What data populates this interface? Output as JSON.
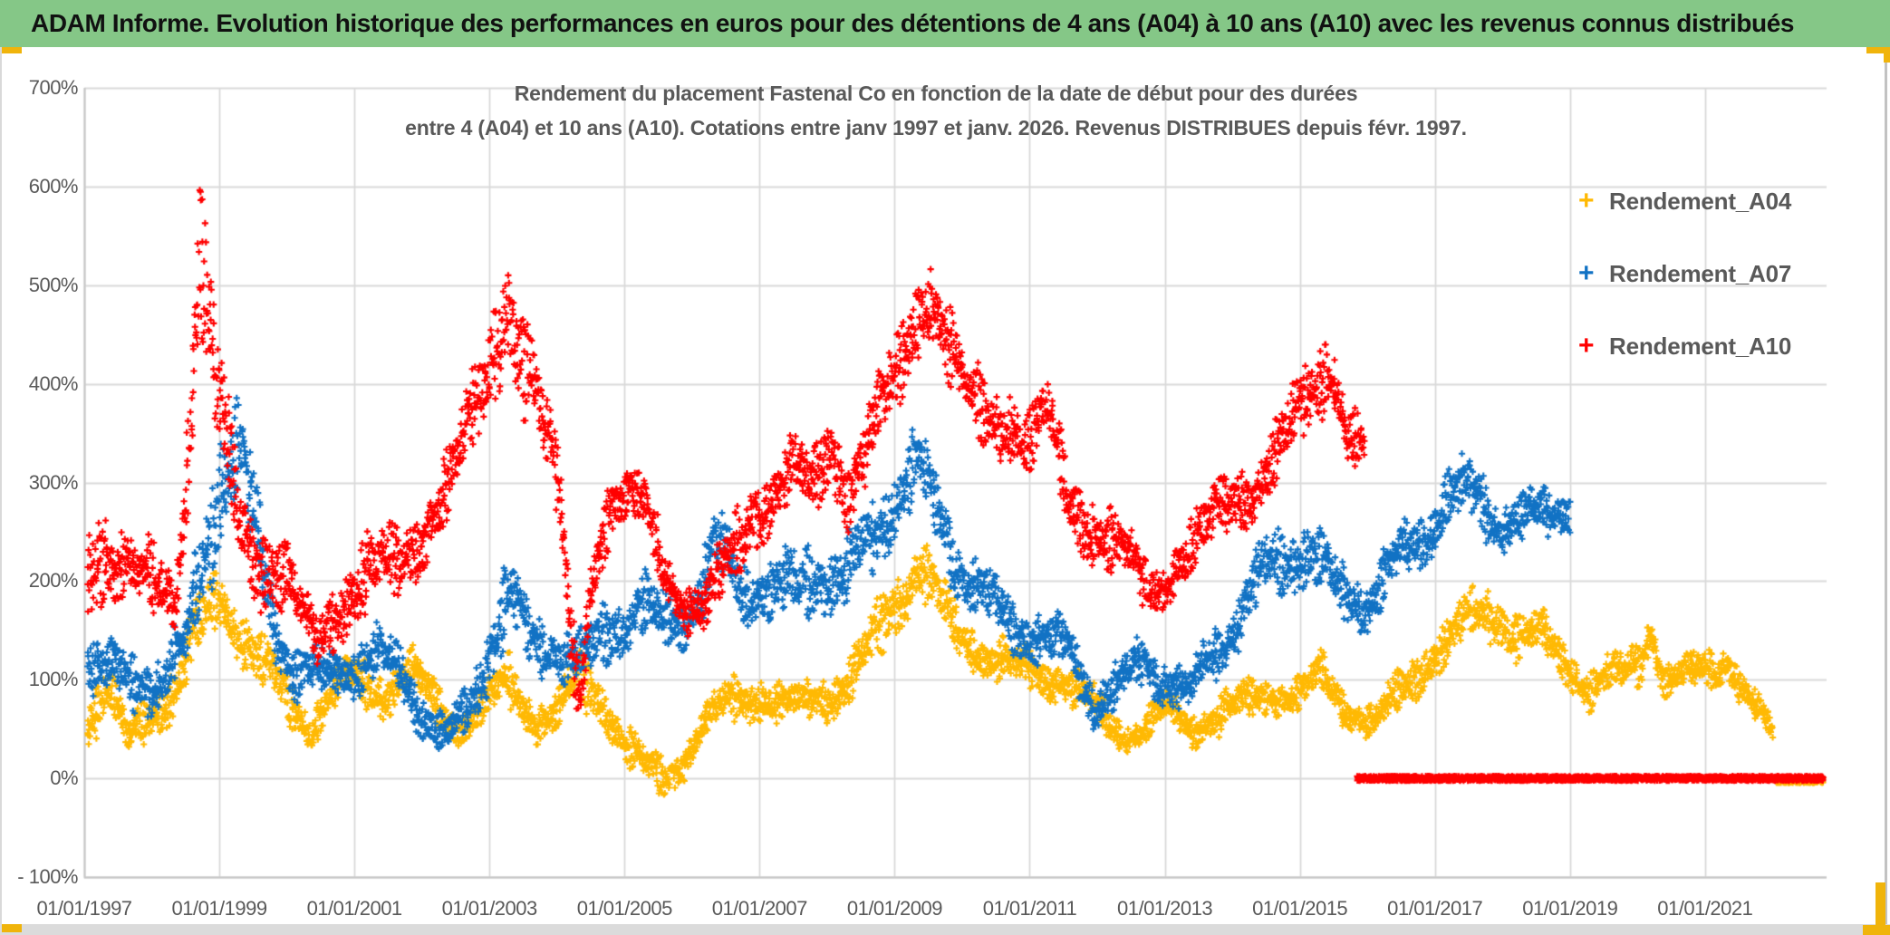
{
  "header": {
    "title": "ADAM Informe. Evolution historique des performances en euros pour des détentions de 4 ans (A04) à 10 ans (A10) avec les revenus connus distribués"
  },
  "colors": {
    "header_green": "#85C787",
    "accent_gold": "#F0B40B",
    "grid": "#D9D9D9",
    "plot_border": "#C6C6C6",
    "axis_label": "#595959",
    "series_a04": "#FFB903",
    "series_a07": "#1172C4",
    "series_a10": "#FF0000"
  },
  "chart_data": {
    "type": "scatter",
    "title_line1": "Rendement du placement Fastenal Co en fonction de la date de début pour des durées",
    "title_line2": "entre 4 (A04) et 10 ans (A10). Cotations entre janv 1997 et janv. 2026. Revenus DISTRIBUES depuis févr. 1997.",
    "x_range": [
      1997,
      2022.8
    ],
    "y_range": [
      -100,
      700
    ],
    "grid": true,
    "legend_position": "right-top",
    "y_ticks": [
      {
        "label": "700%",
        "value": 700
      },
      {
        "label": "600%",
        "value": 600
      },
      {
        "label": "500%",
        "value": 500
      },
      {
        "label": "400%",
        "value": 400
      },
      {
        "label": "300%",
        "value": 300
      },
      {
        "label": "200%",
        "value": 200
      },
      {
        "label": "100%",
        "value": 100
      },
      {
        "label": "0%",
        "value": 0
      },
      {
        "label": "- 100%",
        "value": -100
      }
    ],
    "x_ticks": [
      {
        "label": "01/01/1997",
        "year": 1997
      },
      {
        "label": "01/01/1999",
        "year": 1999
      },
      {
        "label": "01/01/2001",
        "year": 2001
      },
      {
        "label": "01/01/2003",
        "year": 2003
      },
      {
        "label": "01/01/2005",
        "year": 2005
      },
      {
        "label": "01/01/2007",
        "year": 2007
      },
      {
        "label": "01/01/2009",
        "year": 2009
      },
      {
        "label": "01/01/2011",
        "year": 2011
      },
      {
        "label": "01/01/2013",
        "year": 2013
      },
      {
        "label": "01/01/2015",
        "year": 2015
      },
      {
        "label": "01/01/2017",
        "year": 2017
      },
      {
        "label": "01/01/2019",
        "year": 2019
      },
      {
        "label": "01/01/2021",
        "year": 2021
      }
    ],
    "legend": [
      {
        "label": "Rendement_A04",
        "marker": "+",
        "color": "#FFB903"
      },
      {
        "label": "Rendement_A07",
        "marker": "+",
        "color": "#1172C4"
      },
      {
        "label": "Rendement_A10",
        "marker": "+",
        "color": "#FF0000"
      }
    ],
    "series": [
      {
        "name": "Rendement_A04",
        "color": "#FFB903",
        "marker": "+",
        "zero_band": [
          2022.05,
          2022.75
        ],
        "anchors": [
          [
            1997.05,
            30,
            105
          ],
          [
            1997.35,
            55,
            120
          ],
          [
            1997.65,
            15,
            60
          ],
          [
            1998,
            40,
            100
          ],
          [
            1998.35,
            60,
            120
          ],
          [
            1998.7,
            110,
            190
          ],
          [
            1999,
            150,
            232
          ],
          [
            1999.3,
            120,
            190
          ],
          [
            1999.6,
            80,
            150
          ],
          [
            2000,
            50,
            110
          ],
          [
            2000.35,
            30,
            80
          ],
          [
            2000.7,
            60,
            110
          ],
          [
            2001,
            70,
            130
          ],
          [
            2001.4,
            60,
            120
          ],
          [
            2001.85,
            80,
            135
          ],
          [
            2002.2,
            50,
            100
          ],
          [
            2002.55,
            30,
            75
          ],
          [
            2002.9,
            45,
            95
          ],
          [
            2003.3,
            60,
            130
          ],
          [
            2003.7,
            35,
            85
          ],
          [
            2004,
            40,
            90
          ],
          [
            2004.35,
            60,
            140
          ],
          [
            2004.7,
            50,
            110
          ],
          [
            2005,
            10,
            60
          ],
          [
            2005.3,
            -15,
            35
          ],
          [
            2005.6,
            -25,
            25
          ],
          [
            2005.9,
            0,
            50
          ],
          [
            2006.2,
            30,
            80
          ],
          [
            2006.6,
            50,
            110
          ],
          [
            2007,
            60,
            115
          ],
          [
            2007.4,
            45,
            95
          ],
          [
            2007.8,
            55,
            110
          ],
          [
            2008.2,
            60,
            120
          ],
          [
            2008.6,
            90,
            160
          ],
          [
            2009,
            140,
            220
          ],
          [
            2009.35,
            180,
            258
          ],
          [
            2009.6,
            150,
            220
          ],
          [
            2009.9,
            120,
            180
          ],
          [
            2010.3,
            100,
            155
          ],
          [
            2010.7,
            85,
            140
          ],
          [
            2011.1,
            80,
            130
          ],
          [
            2011.5,
            75,
            125
          ],
          [
            2011.9,
            45,
            100
          ],
          [
            2012.3,
            25,
            70
          ],
          [
            2012.7,
            30,
            70
          ],
          [
            2013,
            45,
            90
          ],
          [
            2013.4,
            30,
            75
          ],
          [
            2013.8,
            40,
            90
          ],
          [
            2014.2,
            50,
            100
          ],
          [
            2014.6,
            65,
            115
          ],
          [
            2015,
            55,
            105
          ],
          [
            2015.3,
            75,
            130
          ],
          [
            2015.7,
            50,
            100
          ],
          [
            2016.1,
            35,
            75
          ],
          [
            2016.5,
            60,
            115
          ],
          [
            2016.9,
            95,
            155
          ],
          [
            2017.2,
            105,
            165
          ],
          [
            2017.55,
            130,
            195
          ],
          [
            2017.9,
            140,
            205
          ],
          [
            2018.25,
            110,
            170
          ],
          [
            2018.6,
            115,
            170
          ],
          [
            2018.95,
            95,
            150
          ],
          [
            2019.3,
            65,
            115
          ],
          [
            2019.7,
            80,
            130
          ],
          [
            2020.05,
            95,
            150
          ],
          [
            2020.2,
            130,
            185
          ],
          [
            2020.4,
            70,
            120
          ],
          [
            2020.8,
            80,
            130
          ],
          [
            2021.1,
            90,
            140
          ],
          [
            2021.35,
            95,
            150
          ],
          [
            2021.6,
            60,
            105
          ],
          [
            2021.85,
            40,
            80
          ],
          [
            2022,
            30,
            60
          ]
        ]
      },
      {
        "name": "Rendement_A07",
        "color": "#1172C4",
        "marker": "+",
        "anchors": [
          [
            1997.05,
            90,
            160
          ],
          [
            1997.4,
            70,
            140
          ],
          [
            1997.8,
            60,
            130
          ],
          [
            1998.2,
            70,
            140
          ],
          [
            1998.5,
            90,
            170
          ],
          [
            1998.75,
            150,
            280
          ],
          [
            1999.05,
            250,
            400
          ],
          [
            1999.3,
            260,
            390
          ],
          [
            1999.55,
            180,
            300
          ],
          [
            1999.8,
            120,
            200
          ],
          [
            2000.1,
            80,
            150
          ],
          [
            2000.5,
            70,
            130
          ],
          [
            2000.9,
            80,
            150
          ],
          [
            2001.3,
            90,
            160
          ],
          [
            2001.7,
            70,
            140
          ],
          [
            2002,
            40,
            100
          ],
          [
            2002.35,
            15,
            60
          ],
          [
            2002.7,
            40,
            100
          ],
          [
            2003,
            90,
            180
          ],
          [
            2003.3,
            140,
            235
          ],
          [
            2003.6,
            100,
            170
          ],
          [
            2004,
            100,
            170
          ],
          [
            2004.4,
            80,
            150
          ],
          [
            2004.8,
            110,
            190
          ],
          [
            2005.2,
            140,
            220
          ],
          [
            2005.6,
            110,
            190
          ],
          [
            2006,
            140,
            210
          ],
          [
            2006.35,
            180,
            285
          ],
          [
            2006.7,
            150,
            230
          ],
          [
            2007.1,
            160,
            240
          ],
          [
            2007.5,
            140,
            230
          ],
          [
            2007.9,
            170,
            250
          ],
          [
            2008.3,
            160,
            250
          ],
          [
            2008.7,
            200,
            290
          ],
          [
            2009.05,
            250,
            340
          ],
          [
            2009.35,
            270,
            360
          ],
          [
            2009.6,
            230,
            320
          ],
          [
            2010,
            170,
            250
          ],
          [
            2010.4,
            140,
            210
          ],
          [
            2010.8,
            120,
            190
          ],
          [
            2011.2,
            110,
            180
          ],
          [
            2011.6,
            90,
            160
          ],
          [
            2011.95,
            50,
            110
          ],
          [
            2012.3,
            60,
            120
          ],
          [
            2012.7,
            90,
            150
          ],
          [
            2013.05,
            70,
            130
          ],
          [
            2013.35,
            55,
            110
          ],
          [
            2013.7,
            90,
            160
          ],
          [
            2014.1,
            130,
            200
          ],
          [
            2014.5,
            170,
            250
          ],
          [
            2014.9,
            190,
            270
          ],
          [
            2015.2,
            190,
            265
          ],
          [
            2015.6,
            150,
            220
          ],
          [
            2016,
            150,
            215
          ],
          [
            2016.4,
            180,
            250
          ],
          [
            2016.8,
            210,
            280
          ],
          [
            2017.15,
            240,
            320
          ],
          [
            2017.5,
            250,
            330
          ],
          [
            2017.8,
            235,
            310
          ],
          [
            2018.1,
            225,
            300
          ],
          [
            2018.45,
            230,
            295
          ],
          [
            2018.75,
            245,
            305
          ],
          [
            2019,
            250,
            300
          ]
        ]
      },
      {
        "name": "Rendement_A10",
        "color": "#FF0000",
        "marker": "+",
        "zero_band": [
          2015.85,
          2022.75
        ],
        "anchors": [
          [
            1997.05,
            140,
            300
          ],
          [
            1997.2,
            180,
            310
          ],
          [
            1997.45,
            150,
            250
          ],
          [
            1997.8,
            150,
            240
          ],
          [
            1998.1,
            160,
            260
          ],
          [
            1998.35,
            150,
            240
          ],
          [
            1998.55,
            240,
            420
          ],
          [
            1998.7,
            420,
            615
          ],
          [
            1998.85,
            330,
            520
          ],
          [
            1999.05,
            260,
            430
          ],
          [
            1999.3,
            220,
            330
          ],
          [
            1999.6,
            170,
            280
          ],
          [
            2000,
            150,
            240
          ],
          [
            2000.4,
            100,
            180
          ],
          [
            2000.8,
            140,
            230
          ],
          [
            2001.2,
            150,
            250
          ],
          [
            2001.6,
            170,
            260
          ],
          [
            2002,
            210,
            300
          ],
          [
            2002.4,
            250,
            340
          ],
          [
            2002.7,
            290,
            400
          ],
          [
            2003,
            350,
            480
          ],
          [
            2003.25,
            420,
            577
          ],
          [
            2003.5,
            360,
            490
          ],
          [
            2003.8,
            290,
            410
          ],
          [
            2004.05,
            230,
            330
          ],
          [
            2004.2,
            90,
            200
          ],
          [
            2004.35,
            60,
            130
          ],
          [
            2004.5,
            150,
            260
          ],
          [
            2004.7,
            220,
            300
          ],
          [
            2005,
            240,
            310
          ],
          [
            2005.3,
            240,
            320
          ],
          [
            2005.6,
            180,
            260
          ],
          [
            2005.9,
            140,
            210
          ],
          [
            2006.2,
            130,
            200
          ],
          [
            2006.5,
            170,
            260
          ],
          [
            2006.9,
            230,
            330
          ],
          [
            2007.2,
            240,
            320
          ],
          [
            2007.5,
            260,
            350
          ],
          [
            2007.8,
            250,
            340
          ],
          [
            2008.05,
            290,
            420
          ],
          [
            2008.3,
            250,
            340
          ],
          [
            2008.6,
            280,
            380
          ],
          [
            2008.9,
            320,
            440
          ],
          [
            2009.15,
            380,
            500
          ],
          [
            2009.4,
            440,
            545
          ],
          [
            2009.6,
            430,
            540
          ],
          [
            2009.85,
            370,
            470
          ],
          [
            2010.1,
            330,
            430
          ],
          [
            2010.4,
            330,
            420
          ],
          [
            2010.7,
            320,
            420
          ],
          [
            2011,
            290,
            380
          ],
          [
            2011.3,
            300,
            410
          ],
          [
            2011.6,
            240,
            330
          ],
          [
            2012,
            210,
            300
          ],
          [
            2012.4,
            180,
            260
          ],
          [
            2012.8,
            150,
            230
          ],
          [
            2013.1,
            180,
            250
          ],
          [
            2013.5,
            200,
            280
          ],
          [
            2013.9,
            230,
            310
          ],
          [
            2014.3,
            260,
            340
          ],
          [
            2014.7,
            290,
            380
          ],
          [
            2015,
            310,
            410
          ],
          [
            2015.25,
            340,
            450
          ],
          [
            2015.45,
            390,
            480
          ],
          [
            2015.7,
            320,
            400
          ],
          [
            2015.95,
            300,
            370
          ]
        ]
      }
    ]
  }
}
